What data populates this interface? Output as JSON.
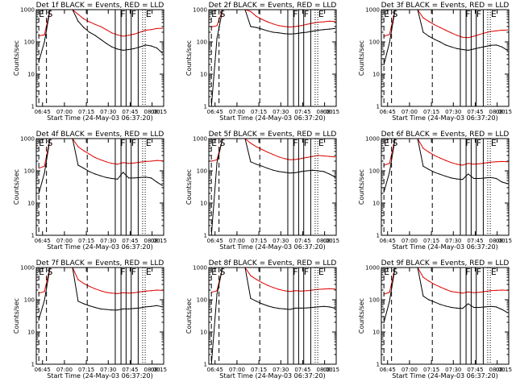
{
  "figure": {
    "background": "#ffffff"
  },
  "chart_data": [
    {
      "type": "line",
      "detector": "1f",
      "title": "Det 1f BLACK = Events, RED = LLD",
      "xlabel": "Start Time (24-May-03 06:37:20)",
      "ylabel": "Counts/sec",
      "x_tick_labels": [
        "06:45",
        "07:00",
        "07:15",
        "07:30",
        "07:45",
        "08:00",
        "08:15"
      ],
      "y_tick_labels": [
        "1",
        "10",
        "100",
        "1000"
      ],
      "yscale": "log",
      "ylim": [
        1,
        1000
      ],
      "flags": [
        "E",
        "S",
        "F",
        "F",
        "E"
      ],
      "series": [
        {
          "name": "RED",
          "color": "#e00000",
          "values": [
            155,
            165,
            1000,
            1000,
            1000,
            1000,
            1000,
            720,
            520,
            420,
            350,
            300,
            240,
            190,
            165,
            150,
            160,
            175,
            200,
            230,
            240,
            260,
            265
          ]
        },
        {
          "name": "BLACK",
          "color": "#000000",
          "values": [
            25,
            100,
            1000,
            1000,
            1000,
            1000,
            1000,
            440,
            280,
            200,
            160,
            120,
            90,
            70,
            60,
            55,
            58,
            62,
            70,
            80,
            75,
            65,
            45
          ]
        }
      ]
    },
    {
      "type": "line",
      "detector": "2f",
      "title": "Det 2f BLACK = Events, RED = LLD",
      "xlabel": "Start Time (24-May-03 06:37:20)",
      "ylabel": "Counts/sec",
      "x_tick_labels": [
        "06:45",
        "07:00",
        "07:15",
        "07:30",
        "07:45",
        "08:00",
        "08:15"
      ],
      "y_tick_labels": [
        "1",
        "10",
        "100",
        "1000"
      ],
      "yscale": "log",
      "ylim": [
        1,
        1000
      ],
      "flags": [
        "E",
        "S",
        "F",
        "F",
        "E"
      ],
      "series": [
        {
          "name": "RED",
          "color": "#e00000",
          "values": [
            290,
            320,
            1000,
            1000,
            1000,
            1000,
            1000,
            880,
            620,
            500,
            420,
            360,
            320,
            300,
            290,
            300,
            320,
            350,
            380,
            410,
            420,
            440,
            430
          ]
        },
        {
          "name": "BLACK",
          "color": "#000000",
          "values": [
            1,
            130,
            1000,
            1000,
            1000,
            1000,
            1000,
            300,
            280,
            250,
            220,
            200,
            190,
            180,
            175,
            180,
            190,
            200,
            215,
            230,
            240,
            250,
            260
          ]
        }
      ]
    },
    {
      "type": "line",
      "detector": "3f",
      "title": "Det 3f BLACK = Events, RED = LLD",
      "xlabel": "Start Time (24-May-03 06:37:20)",
      "ylabel": "Counts/sec",
      "x_tick_labels": [
        "06:45",
        "07:00",
        "07:15",
        "07:30",
        "07:45",
        "08:00",
        "08:15"
      ],
      "y_tick_labels": [
        "1",
        "10",
        "100",
        "1000"
      ],
      "yscale": "log",
      "ylim": [
        1,
        1000
      ],
      "flags": [
        "E",
        "S",
        "F",
        "F",
        "E"
      ],
      "series": [
        {
          "name": "RED",
          "color": "#e00000",
          "values": [
            150,
            170,
            1000,
            1000,
            1000,
            1000,
            1000,
            560,
            430,
            340,
            280,
            230,
            190,
            160,
            140,
            135,
            150,
            170,
            190,
            210,
            220,
            230,
            235
          ]
        },
        {
          "name": "BLACK",
          "color": "#000000",
          "values": [
            20,
            95,
            1000,
            1000,
            1000,
            1000,
            1000,
            200,
            150,
            120,
            100,
            80,
            70,
            62,
            58,
            55,
            60,
            66,
            72,
            78,
            80,
            70,
            55
          ]
        }
      ]
    },
    {
      "type": "line",
      "detector": "4f",
      "title": "Det 4f BLACK = Events, RED = LLD",
      "xlabel": "Start Time (24-May-03 06:37:20)",
      "ylabel": "Counts/sec",
      "x_tick_labels": [
        "06:45",
        "07:00",
        "07:15",
        "07:30",
        "07:45",
        "08:00",
        "08:15"
      ],
      "y_tick_labels": [
        "1",
        "10",
        "100",
        "1000"
      ],
      "yscale": "log",
      "ylim": [
        1,
        1000
      ],
      "flags": [
        "E",
        "S",
        "F",
        "F",
        "E"
      ],
      "series": [
        {
          "name": "RED",
          "color": "#e00000",
          "values": [
            120,
            140,
            1000,
            1000,
            1000,
            1000,
            1000,
            560,
            420,
            330,
            260,
            220,
            190,
            170,
            160,
            180,
            170,
            175,
            185,
            195,
            200,
            210,
            205
          ]
        },
        {
          "name": "BLACK",
          "color": "#000000",
          "values": [
            20,
            85,
            1000,
            1000,
            1000,
            1000,
            1000,
            150,
            120,
            95,
            80,
            70,
            62,
            58,
            55,
            90,
            60,
            60,
            62,
            64,
            60,
            45,
            35
          ]
        }
      ]
    },
    {
      "type": "line",
      "detector": "5f",
      "title": "Det 5f BLACK = Events, RED = LLD",
      "xlabel": "Start Time (24-May-03 06:37:20)",
      "ylabel": "Counts/sec",
      "x_tick_labels": [
        "06:45",
        "07:00",
        "07:15",
        "07:30",
        "07:45",
        "08:00",
        "08:15"
      ],
      "y_tick_labels": [
        "1",
        "10",
        "100",
        "1000"
      ],
      "yscale": "log",
      "ylim": [
        1,
        1000
      ],
      "flags": [
        "E",
        "S",
        "F",
        "F",
        "E"
      ],
      "series": [
        {
          "name": "RED",
          "color": "#e00000",
          "values": [
            200,
            220,
            1000,
            1000,
            1000,
            1000,
            1000,
            720,
            560,
            460,
            380,
            320,
            270,
            240,
            220,
            225,
            240,
            260,
            280,
            300,
            290,
            280,
            270
          ]
        },
        {
          "name": "BLACK",
          "color": "#000000",
          "values": [
            1,
            180,
            1000,
            1000,
            1000,
            1000,
            1000,
            190,
            160,
            140,
            120,
            105,
            95,
            90,
            85,
            88,
            95,
            100,
            105,
            100,
            95,
            80,
            65
          ]
        }
      ]
    },
    {
      "type": "line",
      "detector": "6f",
      "title": "Det 6f BLACK = Events, RED = LLD",
      "xlabel": "Start Time (24-May-03 06:37:20)",
      "ylabel": "Counts/sec",
      "x_tick_labels": [
        "06:45",
        "07:00",
        "07:15",
        "07:30",
        "07:45",
        "08:00",
        "08:15"
      ],
      "y_tick_labels": [
        "1",
        "10",
        "100",
        "1000"
      ],
      "yscale": "log",
      "ylim": [
        1,
        1000
      ],
      "flags": [
        "E",
        "S",
        "F",
        "F",
        "E"
      ],
      "series": [
        {
          "name": "RED",
          "color": "#e00000",
          "values": [
            150,
            170,
            1000,
            1000,
            1000,
            1000,
            1000,
            500,
            380,
            300,
            250,
            210,
            180,
            160,
            150,
            170,
            160,
            165,
            175,
            185,
            190,
            195,
            190
          ]
        },
        {
          "name": "BLACK",
          "color": "#000000",
          "values": [
            22,
            90,
            1000,
            1000,
            1000,
            1000,
            1000,
            140,
            110,
            90,
            78,
            68,
            60,
            56,
            54,
            80,
            58,
            58,
            60,
            62,
            58,
            45,
            40
          ]
        }
      ]
    },
    {
      "type": "line",
      "detector": "7f",
      "title": "Det 7f BLACK = Events, RED = LLD",
      "xlabel": "Start Time (24-May-03 06:37:20)",
      "ylabel": "Counts/sec",
      "x_tick_labels": [
        "06:45",
        "07:00",
        "07:15",
        "07:30",
        "07:45",
        "08:00",
        "08:15"
      ],
      "y_tick_labels": [
        "1",
        "10",
        "100",
        "1000"
      ],
      "yscale": "log",
      "ylim": [
        1,
        1000
      ],
      "flags": [
        "E",
        "S",
        "F",
        "F",
        "E"
      ],
      "series": [
        {
          "name": "RED",
          "color": "#e00000",
          "values": [
            160,
            180,
            1000,
            1000,
            1000,
            1000,
            1000,
            420,
            320,
            260,
            220,
            190,
            170,
            160,
            155,
            165,
            160,
            165,
            175,
            185,
            190,
            200,
            195
          ]
        },
        {
          "name": "BLACK",
          "color": "#000000",
          "values": [
            25,
            95,
            1000,
            1000,
            1000,
            1000,
            1000,
            90,
            75,
            65,
            58,
            52,
            50,
            48,
            48,
            52,
            52,
            54,
            56,
            60,
            62,
            66,
            60
          ]
        }
      ]
    },
    {
      "type": "line",
      "detector": "8f",
      "title": "Det 8f BLACK = Events, RED = LLD",
      "xlabel": "Start Time (24-May-03 06:37:20)",
      "ylabel": "Counts/sec",
      "x_tick_labels": [
        "06:45",
        "07:00",
        "07:15",
        "07:30",
        "07:45",
        "08:00",
        "08:15"
      ],
      "y_tick_labels": [
        "1",
        "10",
        "100",
        "1000"
      ],
      "yscale": "log",
      "ylim": [
        1,
        1000
      ],
      "flags": [
        "E",
        "S",
        "F",
        "F",
        "E"
      ],
      "series": [
        {
          "name": "RED",
          "color": "#e00000",
          "values": [
            170,
            190,
            1000,
            1000,
            1000,
            1000,
            1000,
            560,
            430,
            340,
            280,
            240,
            210,
            190,
            180,
            190,
            185,
            190,
            200,
            210,
            215,
            220,
            215
          ]
        },
        {
          "name": "BLACK",
          "color": "#000000",
          "values": [
            1,
            150,
            1000,
            1000,
            1000,
            1000,
            1000,
            110,
            90,
            75,
            65,
            58,
            54,
            52,
            50,
            55,
            55,
            56,
            58,
            60,
            62,
            60,
            55
          ]
        }
      ]
    },
    {
      "type": "line",
      "detector": "9f",
      "title": "Det 9f BLACK = Events, RED = LLD",
      "xlabel": "Start Time (24-May-03 06:37:20)",
      "ylabel": "Counts/sec",
      "x_tick_labels": [
        "06:45",
        "07:00",
        "07:15",
        "07:30",
        "07:45",
        "08:00",
        "08:15"
      ],
      "y_tick_labels": [
        "1",
        "10",
        "100",
        "1000"
      ],
      "yscale": "log",
      "ylim": [
        1,
        1000
      ],
      "flags": [
        "E",
        "S",
        "F",
        "F",
        "E"
      ],
      "series": [
        {
          "name": "RED",
          "color": "#e00000",
          "values": [
            150,
            170,
            1000,
            1000,
            1000,
            1000,
            1000,
            500,
            380,
            300,
            250,
            210,
            180,
            170,
            160,
            175,
            165,
            170,
            180,
            190,
            195,
            200,
            195
          ]
        },
        {
          "name": "BLACK",
          "color": "#000000",
          "values": [
            20,
            90,
            1000,
            1000,
            1000,
            1000,
            1000,
            130,
            100,
            85,
            72,
            64,
            58,
            55,
            54,
            75,
            58,
            58,
            60,
            62,
            60,
            50,
            40
          ]
        }
      ]
    }
  ]
}
